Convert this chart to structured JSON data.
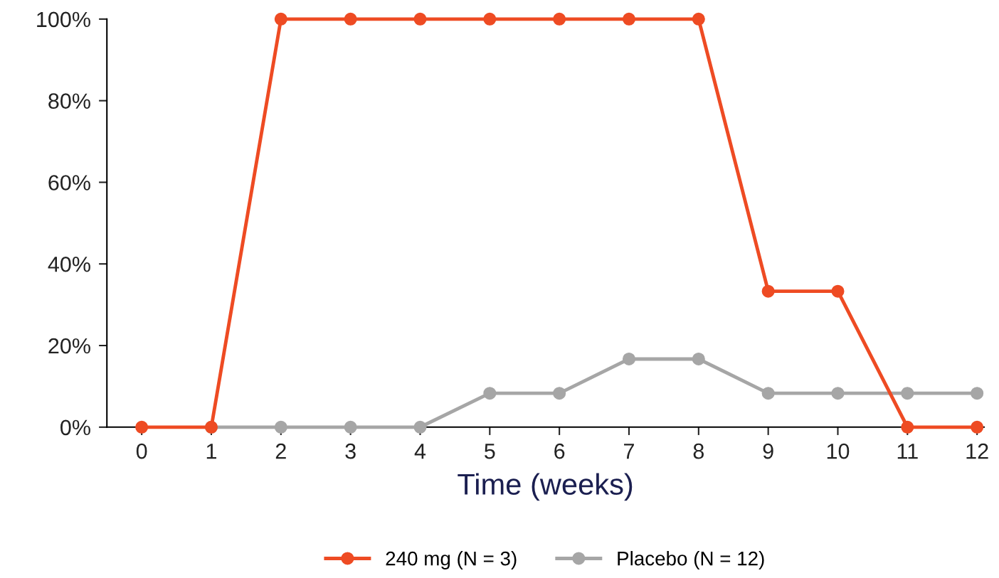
{
  "chart_data": {
    "type": "line",
    "xlabel": "Time (weeks)",
    "x": [
      0,
      1,
      2,
      3,
      4,
      5,
      6,
      7,
      8,
      9,
      10,
      11,
      12
    ],
    "series": [
      {
        "name": "240 mg (N = 3)",
        "color": "#ee4b23",
        "values": [
          0,
          0,
          100,
          100,
          100,
          100,
          100,
          100,
          100,
          33.3,
          33.3,
          0,
          0
        ]
      },
      {
        "name": "Placebo (N = 12)",
        "color": "#a6a6a6",
        "values": [
          null,
          0,
          0,
          0,
          0,
          8.3,
          8.3,
          16.7,
          16.7,
          8.3,
          8.3,
          8.3,
          8.3
        ]
      }
    ],
    "xlim": [
      -0.5,
      12.1
    ],
    "xticks": [
      0,
      1,
      2,
      3,
      4,
      5,
      6,
      7,
      8,
      9,
      10,
      11,
      12
    ],
    "ylim": [
      0,
      100
    ],
    "yticks": [
      {
        "value": 0,
        "label": "0%"
      },
      {
        "value": 20,
        "label": "20%"
      },
      {
        "value": 40,
        "label": "40%"
      },
      {
        "value": 60,
        "label": "60%"
      },
      {
        "value": 80,
        "label": "80%"
      },
      {
        "value": 100,
        "label": "100%"
      }
    ],
    "marker": "circle",
    "line_style": "solid",
    "grid": false,
    "legend": "bottom"
  }
}
